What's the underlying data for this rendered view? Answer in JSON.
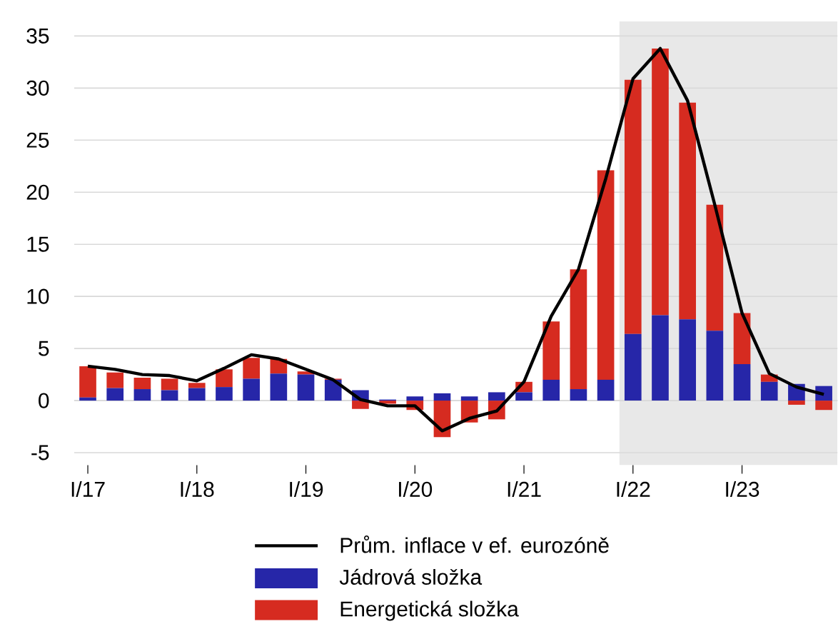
{
  "chart_data": {
    "type": "bar",
    "stacked": true,
    "categories": [
      "I/17",
      null,
      null,
      null,
      "I/18",
      null,
      null,
      null,
      "I/19",
      null,
      null,
      null,
      "I/20",
      null,
      null,
      null,
      "I/21",
      null,
      null,
      null,
      "I/22",
      null,
      null,
      null,
      "I/23",
      null,
      null,
      null
    ],
    "series": [
      {
        "name": "Prům. inflace v ef. eurozóně",
        "type": "line",
        "color": "#000000",
        "values": [
          3.3,
          3.0,
          2.5,
          2.4,
          1.9,
          3.1,
          4.4,
          4.0,
          3.0,
          2.0,
          0.1,
          -0.5,
          -0.5,
          -2.9,
          -1.7,
          -1.0,
          1.8,
          8.1,
          12.6,
          21.3,
          30.9,
          33.8,
          28.8,
          18.8,
          8.4,
          2.6,
          1.3,
          0.6
        ]
      },
      {
        "name": "Jádrová složka",
        "color": "#2626a8",
        "values": [
          0.3,
          1.2,
          1.1,
          1.0,
          1.2,
          1.3,
          2.1,
          2.6,
          2.5,
          2.0,
          1.0,
          0.1,
          0.4,
          0.7,
          0.4,
          0.8,
          0.8,
          2.0,
          1.1,
          2.0,
          6.4,
          8.2,
          7.8,
          6.7,
          3.5,
          1.8,
          1.6,
          1.4
        ]
      },
      {
        "name": "Energetická složka",
        "color": "#d62b20",
        "values": [
          3.0,
          1.5,
          1.1,
          1.1,
          0.5,
          1.7,
          2.0,
          1.4,
          0.3,
          0.1,
          -0.8,
          -0.3,
          -0.9,
          -3.5,
          -2.1,
          -1.8,
          1.0,
          5.6,
          11.5,
          20.1,
          24.4,
          25.6,
          20.8,
          12.1,
          4.9,
          0.7,
          -0.4,
          -0.9
        ]
      }
    ],
    "ylim": [
      -6.2,
      36.4
    ],
    "yticks": [
      -5,
      0,
      5,
      10,
      15,
      20,
      25,
      30,
      35
    ],
    "grid": "y",
    "legend": "bottom"
  }
}
